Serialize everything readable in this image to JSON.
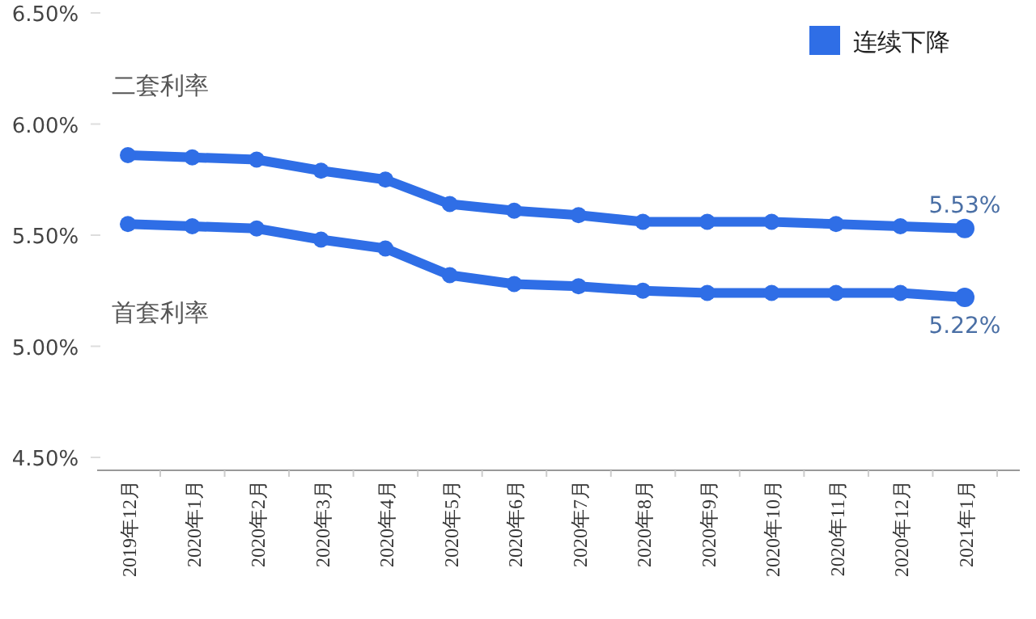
{
  "chart_data": {
    "type": "line",
    "categories": [
      "2019年12月",
      "2020年1月",
      "2020年2月",
      "2020年3月",
      "2020年4月",
      "2020年5月",
      "2020年6月",
      "2020年7月",
      "2020年8月",
      "2020年9月",
      "2020年10月",
      "2020年11月",
      "2020年12月",
      "2021年1月"
    ],
    "series": [
      {
        "name": "二套利率",
        "color": "#2f6ee6",
        "values": [
          5.86,
          5.85,
          5.84,
          5.79,
          5.75,
          5.64,
          5.61,
          5.59,
          5.56,
          5.56,
          5.56,
          5.55,
          5.54,
          5.53
        ],
        "value_labels": [
          null,
          null,
          null,
          null,
          null,
          null,
          null,
          null,
          null,
          null,
          null,
          null,
          null,
          "5.53%"
        ]
      },
      {
        "name": "首套利率",
        "color": "#2f6ee6",
        "values": [
          5.55,
          5.54,
          5.53,
          5.48,
          5.44,
          5.32,
          5.28,
          5.27,
          5.25,
          5.24,
          5.24,
          5.24,
          5.24,
          5.22
        ],
        "value_labels": [
          null,
          null,
          null,
          null,
          null,
          null,
          null,
          null,
          null,
          null,
          null,
          null,
          null,
          "5.22%"
        ]
      }
    ],
    "legend_title": "连续下降",
    "marker": "circle",
    "line_style": "solid",
    "grid": false,
    "ylim": [
      4.5,
      6.5
    ],
    "yticks": [
      {
        "value": 4.5,
        "label": "4.50%"
      },
      {
        "value": 5.0,
        "label": "5.00%"
      },
      {
        "value": 5.5,
        "label": "5.50%"
      },
      {
        "value": 6.0,
        "label": "6.00%"
      },
      {
        "value": 6.5,
        "label": "6.50%"
      }
    ]
  }
}
